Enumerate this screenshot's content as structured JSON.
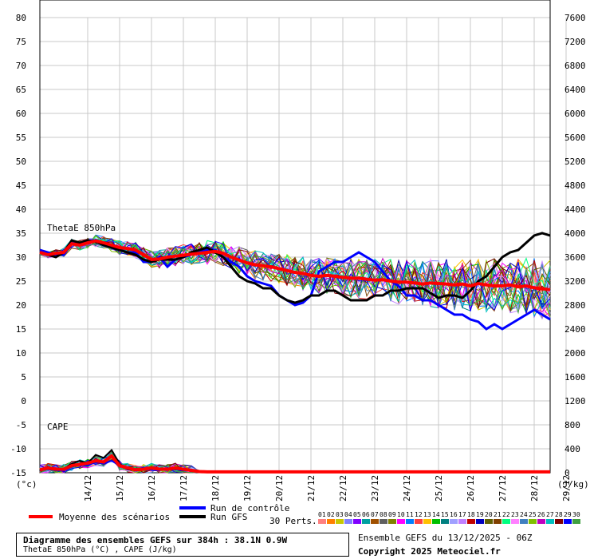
{
  "chart_data": {
    "type": "line",
    "left_axis": {
      "unit": "(°c)",
      "min": -15,
      "max": 80,
      "ticks": [
        80,
        75,
        70,
        65,
        60,
        55,
        50,
        45,
        40,
        35,
        30,
        25,
        20,
        15,
        10,
        5,
        0,
        -5,
        -10,
        -15
      ]
    },
    "right_axis": {
      "unit": "(J/kg)",
      "min": 0,
      "max": 7600,
      "ticks": [
        7600,
        7200,
        6800,
        6400,
        6000,
        5600,
        5200,
        4800,
        4400,
        4000,
        3600,
        3200,
        2800,
        2400,
        2000,
        1600,
        1200,
        800,
        400,
        0
      ]
    },
    "x_ticks": [
      "14/12",
      "15/12",
      "16/12",
      "17/12",
      "18/12",
      "19/12",
      "20/12",
      "21/12",
      "22/12",
      "23/12",
      "24/12",
      "25/12",
      "26/12",
      "27/12",
      "28/12",
      "29/12"
    ],
    "grid": true,
    "annotations": [
      "ThetaE 850hPa",
      "CAPE"
    ],
    "time_step_hours": 6,
    "n_steps": 65,
    "thetae_mean": [
      31,
      30.5,
      30.8,
      31,
      32.8,
      32.5,
      33,
      33.4,
      33,
      32.5,
      32,
      31.8,
      31.5,
      30.5,
      29.5,
      29.6,
      30,
      30.2,
      30.4,
      30.6,
      30.8,
      31,
      31.2,
      30.8,
      30,
      29.4,
      28.8,
      28.4,
      28.2,
      28,
      27.6,
      27.2,
      26.8,
      26.6,
      26.2,
      26,
      26.2,
      26,
      25.8,
      25.6,
      25.6,
      25.4,
      25.2,
      25.3,
      25,
      24.8,
      24.8,
      24.6,
      24.4,
      24.6,
      24.5,
      24.4,
      24.2,
      24.4,
      24,
      24.5,
      24.2,
      24,
      24,
      24.2,
      23.8,
      24,
      23.6,
      23.4,
      23.2
    ],
    "thetae_control": [
      31.5,
      31,
      30.5,
      30.5,
      33,
      32.5,
      33.5,
      33.5,
      32.5,
      32,
      31.5,
      31,
      31,
      29,
      29,
      30,
      28,
      29.5,
      30,
      30.5,
      31,
      31.5,
      31.5,
      30,
      29,
      28,
      26,
      25,
      24.5,
      24,
      22,
      21,
      20,
      20.5,
      22,
      27,
      28,
      29,
      29,
      30,
      31,
      30,
      29,
      27,
      25,
      24,
      22,
      22,
      21,
      21,
      20,
      19,
      18,
      18,
      17,
      16.5,
      15,
      16,
      15,
      16,
      17,
      18,
      19,
      18,
      17
    ],
    "thetae_gfs": [
      31,
      30.5,
      30,
      31,
      33.5,
      33,
      33.5,
      33.2,
      32.5,
      32,
      31.5,
      31,
      30.5,
      29.5,
      29,
      29.5,
      29.5,
      29.5,
      30,
      31,
      31.5,
      32,
      31,
      30,
      28,
      26,
      25,
      24.5,
      23.5,
      23.5,
      22,
      21,
      20.5,
      21,
      22,
      22,
      23,
      23,
      22,
      21,
      21,
      21,
      22,
      22,
      23,
      23,
      23.5,
      23.5,
      23.5,
      22.5,
      21.5,
      22,
      22,
      21.5,
      23,
      25,
      26,
      28,
      30,
      31,
      31.5,
      33,
      34.5,
      35,
      34.5
    ],
    "cape_mean": [
      50,
      80,
      60,
      60,
      120,
      140,
      160,
      200,
      180,
      280,
      120,
      80,
      50,
      60,
      80,
      60,
      60,
      80,
      60,
      40,
      20,
      15,
      15,
      15,
      15,
      15,
      15,
      15,
      15,
      15,
      15,
      15,
      15,
      15,
      15,
      15,
      15,
      15,
      15,
      15,
      15,
      15,
      15,
      15,
      15,
      15,
      15,
      15,
      15,
      15,
      15,
      15,
      15,
      15,
      15,
      15,
      15,
      15,
      15,
      15,
      15,
      15,
      15,
      15,
      15
    ],
    "cape_control": [
      40,
      60,
      40,
      40,
      100,
      130,
      120,
      180,
      150,
      200,
      120,
      60,
      40,
      50,
      60,
      50,
      50,
      60,
      40,
      30,
      15,
      10,
      10,
      10,
      10,
      10,
      10,
      10,
      10,
      10,
      10,
      10,
      10,
      10,
      10,
      10,
      10,
      10,
      10,
      10,
      10,
      10,
      10,
      10,
      10,
      10,
      10,
      10,
      10,
      10,
      10,
      10,
      10,
      10,
      10,
      10,
      10,
      10,
      10,
      10,
      10,
      10,
      10,
      10,
      10
    ],
    "cape_gfs": [
      40,
      70,
      60,
      60,
      150,
      200,
      160,
      300,
      250,
      380,
      150,
      60,
      40,
      60,
      70,
      60,
      50,
      70,
      50,
      30,
      15,
      10,
      10,
      10,
      10,
      10,
      10,
      10,
      10,
      10,
      10,
      10,
      10,
      10,
      10,
      10,
      10,
      10,
      10,
      10,
      10,
      10,
      10,
      10,
      10,
      10,
      10,
      10,
      10,
      10,
      10,
      10,
      10,
      10,
      10,
      10,
      10,
      10,
      10,
      10,
      10,
      10,
      10,
      10,
      10
    ],
    "perturbation_colors": [
      "#ff8080",
      "#ff7f00",
      "#c8c800",
      "#8080ff",
      "#8000ff",
      "#00a0a0",
      "#a05000",
      "#606060",
      "#808000",
      "#ff00ff",
      "#0080ff",
      "#ff4040",
      "#ffc000",
      "#00c000",
      "#008080",
      "#a0a0ff",
      "#c080ff",
      "#c00000",
      "#0000c0",
      "#606000",
      "#804000",
      "#00ff80",
      "#ff80ff",
      "#4080c0",
      "#80c000",
      "#c000c0",
      "#00c0c0",
      "#800000",
      "#0000ff",
      "#40a040"
    ],
    "perturbation_labels": [
      "01",
      "02",
      "03",
      "04",
      "05",
      "06",
      "07",
      "08",
      "09",
      "10",
      "11",
      "12",
      "13",
      "14",
      "15",
      "16",
      "17",
      "18",
      "19",
      "20",
      "21",
      "22",
      "23",
      "24",
      "25",
      "26",
      "27",
      "28",
      "29",
      "30"
    ]
  },
  "legend": {
    "mean_label": "Moyenne des scénarios",
    "control_label": "Run de contrôle",
    "gfs_label": "Run GFS",
    "perts_label": "30 Perts.",
    "mean_color": "#ff0000",
    "control_color": "#0000ff",
    "gfs_color": "#000000"
  },
  "footer": {
    "title_line1": "Diagramme des ensembles GEFS sur 384h : 38.1N 0.9W",
    "title_line2": "ThetaE 850hPa (°C) , CAPE (J/kg)",
    "run_info": "Ensemble GEFS du 13/12/2025 - 06Z",
    "copyright": "Copyright 2025 Meteociel.fr"
  }
}
